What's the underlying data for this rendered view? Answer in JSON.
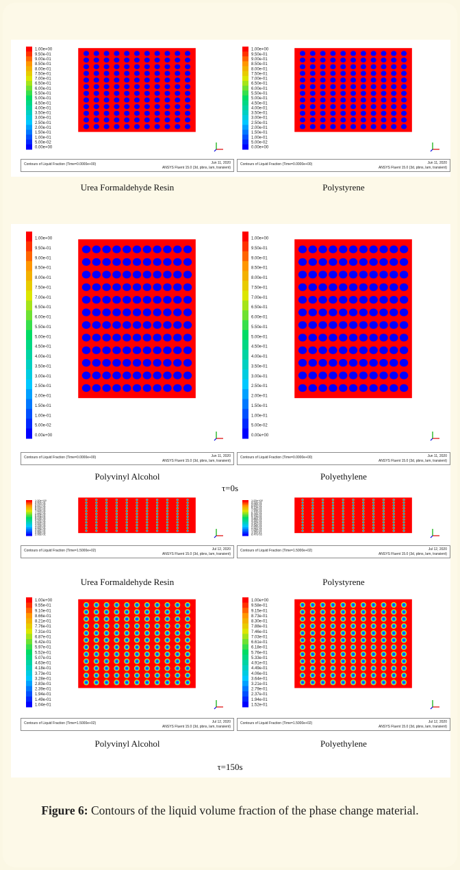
{
  "common": {
    "contour_title": "Contours of Liquid Fraction",
    "software": "ANSYS Fluent 15.0 (3d, pbns, lam, transient)"
  },
  "colors": {
    "page_background": "#fbf7e4",
    "block_background": "#ffffff",
    "liquid": "#ff0000",
    "solid": "#0000ff"
  },
  "scale_0s": [
    "1.00e+00",
    "9.50e-01",
    "9.00e-01",
    "8.50e-01",
    "8.00e-01",
    "7.50e-01",
    "7.00e-01",
    "6.50e-01",
    "6.00e-01",
    "5.50e-01",
    "5.00e-01",
    "4.50e-01",
    "4.00e-01",
    "3.50e-01",
    "3.00e-01",
    "2.50e-01",
    "2.00e-01",
    "1.50e-01",
    "1.00e-01",
    "5.00e-02",
    "0.00e+00"
  ],
  "panels": [
    {
      "material": "Urea Formaldehyde Resin",
      "time": "(Time=0.0000e+00)",
      "date": "Jun 11, 2020",
      "state": "solid",
      "scale_ref": "scale_0s",
      "label_key": "Urea Formaldehyde Resin"
    },
    {
      "material": "Polystyrene",
      "time": "(Time=0.0000e+00)",
      "date": "Jun 11, 2020",
      "state": "solid"
    },
    {
      "material": "Polyvinyl Alcohol",
      "time": "(Time=0.0000e+00)",
      "date": "Jun 11, 2020",
      "state": "solid"
    },
    {
      "material": "Polyethylene",
      "time": "(Time=0.0000e+00)",
      "date": "Jun 11, 2020",
      "state": "solid"
    },
    {
      "material": "Urea Formaldehyde Resin",
      "time": "(Time=1.5000e+02)",
      "date": "Jul 12, 2020",
      "state": "melting",
      "scale": [
        "1.00e+00",
        "9.60e-01",
        "9.21e-01",
        "8.81e-01",
        "8.41e-01",
        "8.02e-01",
        "7.62e-01",
        "7.22e-01",
        "6.83e-01",
        "6.43e-01",
        "6.03e-01",
        "5.64e-01",
        "5.24e-01",
        "4.84e-01",
        "4.44e-01",
        "4.05e-01",
        "3.65e-01",
        "3.25e-01",
        "2.86e-01",
        "2.46e-01",
        "2.06e-01"
      ]
    },
    {
      "material": "Polystyrene",
      "time": "(Time=1.5000e+02)",
      "date": "Jul 12, 2020",
      "state": "melting",
      "scale": [
        "1.00e+00",
        "9.53e-01",
        "9.06e-01",
        "8.60e-01",
        "8.13e-01",
        "7.66e-01",
        "7.19e-01",
        "6.73e-01",
        "6.26e-01",
        "5.79e-01",
        "5.32e-01",
        "4.86e-01",
        "4.39e-01",
        "3.92e-01",
        "3.45e-01",
        "2.98e-01",
        "2.52e-01",
        "2.05e-01",
        "1.58e-01",
        "1.11e-01",
        "6.47e-02"
      ]
    },
    {
      "material": "Polyvinyl Alcohol",
      "time": "(Time=1.5000e+02)",
      "date": "Jul 12, 2020",
      "state": "melting",
      "scale": [
        "1.00e+00",
        "9.55e-01",
        "9.10e-01",
        "8.66e-01",
        "8.21e-01",
        "7.76e-01",
        "7.31e-01",
        "6.87e-01",
        "6.42e-01",
        "5.97e-01",
        "5.52e-01",
        "5.07e-01",
        "4.63e-01",
        "4.18e-01",
        "3.73e-01",
        "3.28e-01",
        "2.83e-01",
        "2.39e-01",
        "1.94e-01",
        "1.49e-01",
        "1.04e-01"
      ]
    },
    {
      "material": "Polyethylene",
      "time": "(Time=1.5000e+02)",
      "date": "Jul 12, 2020",
      "state": "melting",
      "scale": [
        "1.00e+00",
        "9.58e-01",
        "9.15e-01",
        "8.73e-01",
        "8.30e-01",
        "7.88e-01",
        "7.46e-01",
        "7.03e-01",
        "6.61e-01",
        "6.18e-01",
        "5.76e-01",
        "5.33e-01",
        "4.91e-01",
        "4.49e-01",
        "4.06e-01",
        "3.64e-01",
        "3.21e-01",
        "2.79e-01",
        "2.37e-01",
        "1.94e-01",
        "1.52e-01"
      ]
    }
  ],
  "time_labels": {
    "t0": "τ=0s",
    "t150": "τ=150s"
  },
  "caption": {
    "label": "Figure 6:",
    "text": " Contours of the liquid volume fraction of the phase change material."
  }
}
